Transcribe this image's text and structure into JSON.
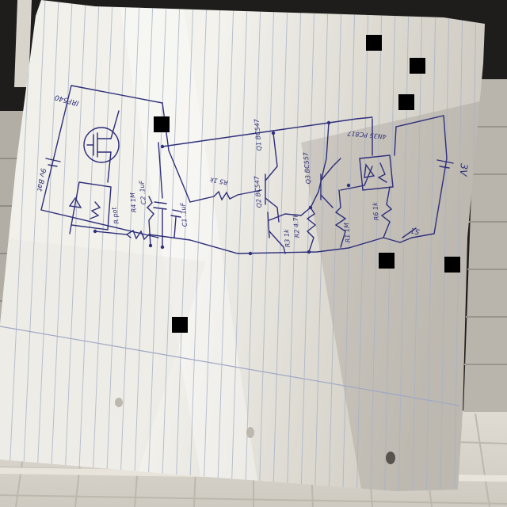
{
  "colors": {
    "background_dark": "#1c1b1a",
    "paper": "#f2f1ec",
    "paper_shadow": "#cfccc3",
    "rule_line": "#a9b3c6",
    "ink": "#2e2f7a",
    "tile": "#dcd8d0",
    "redaction": "#000000"
  },
  "labels": {
    "battery_left": "9v Bat",
    "flyback": "IRF540",
    "pot": "R pot",
    "r4": "R4 1M",
    "c2": "C2 .1uF",
    "c1": "C1 .1uF",
    "r5": "R5 1k",
    "q1": "Q1 BC547",
    "q2": "Q2 BC547",
    "r3": "R3 1k",
    "r2": "R2 4.7k",
    "q3": "Q3 BC557",
    "r1": "R1 1M",
    "opto": "4N35 PC817",
    "r6": "R6 1k",
    "s1": "S1",
    "battery_right": "3V"
  }
}
